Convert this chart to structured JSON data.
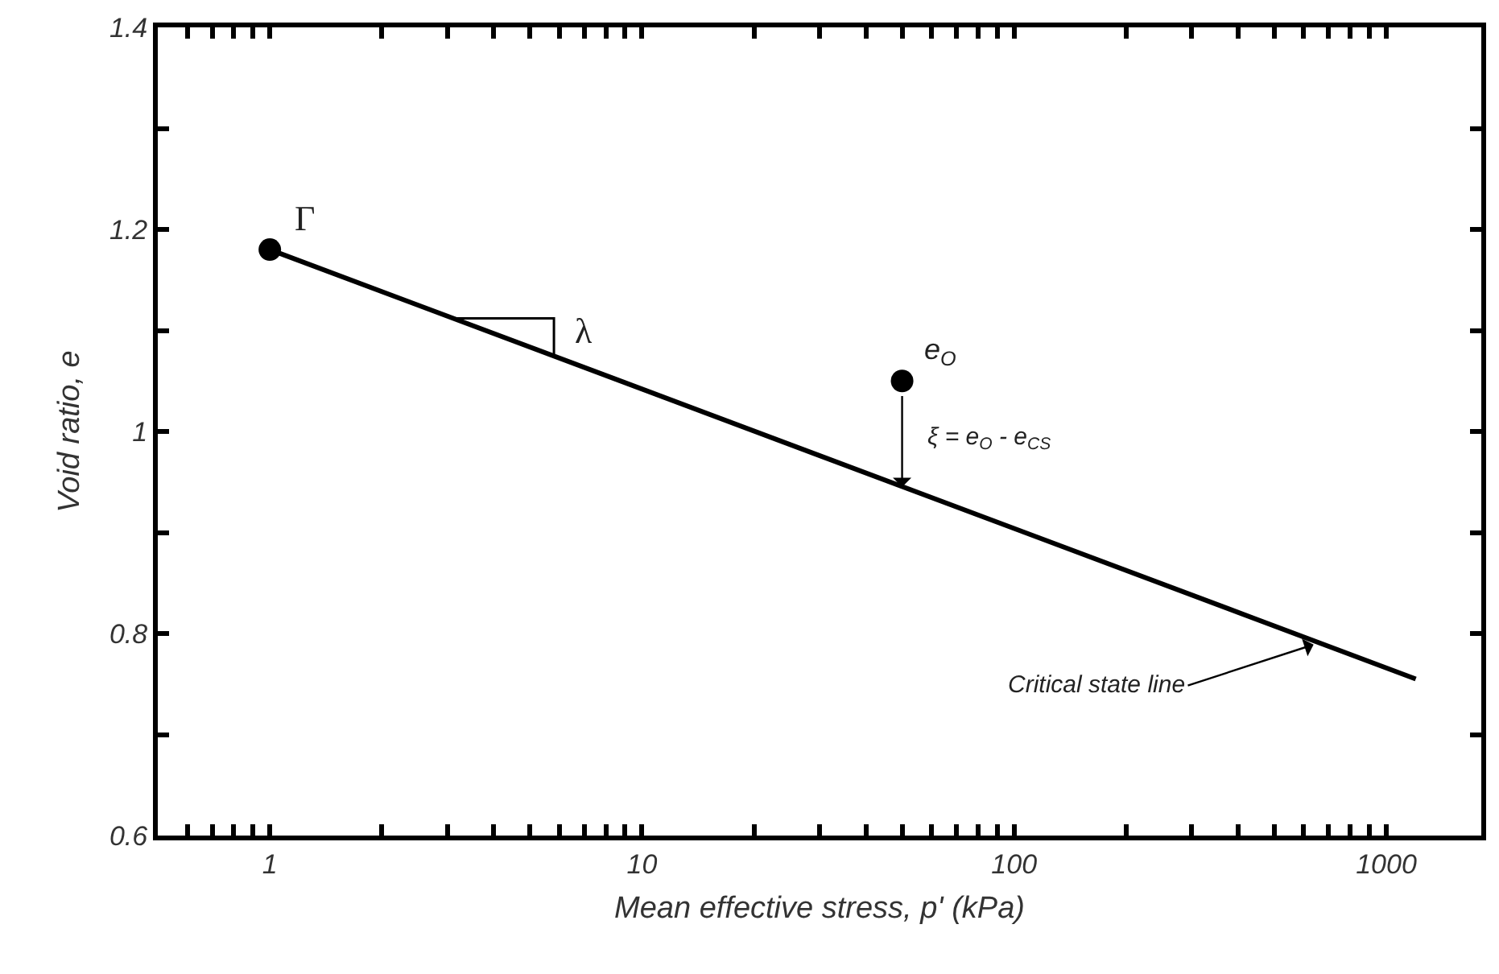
{
  "chart_data": {
    "type": "line",
    "xlabel": "Mean effective stress, p' (kPa)",
    "ylabel": "Void ratio, e",
    "log": "x",
    "xlim": [
      0.5,
      1800
    ],
    "ylim": [
      0.6,
      1.4
    ],
    "xticks": [
      {
        "value": 0.5,
        "label": null
      },
      {
        "value": 0.6,
        "label": null
      },
      {
        "value": 0.7,
        "label": null
      },
      {
        "value": 0.8,
        "label": null
      },
      {
        "value": 0.9,
        "label": null
      },
      1,
      {
        "value": 2,
        "label": null
      },
      {
        "value": 3,
        "label": null
      },
      {
        "value": 4,
        "label": null
      },
      {
        "value": 5,
        "label": null
      },
      {
        "value": 6,
        "label": null
      },
      {
        "value": 7,
        "label": null
      },
      {
        "value": 8,
        "label": null
      },
      {
        "value": 9,
        "label": null
      },
      10,
      {
        "value": 20,
        "label": null
      },
      {
        "value": 30,
        "label": null
      },
      {
        "value": 40,
        "label": null
      },
      {
        "value": 50,
        "label": null
      },
      {
        "value": 60,
        "label": null
      },
      {
        "value": 70,
        "label": null
      },
      {
        "value": 80,
        "label": null
      },
      {
        "value": 90,
        "label": null
      },
      100,
      {
        "value": 200,
        "label": null
      },
      {
        "value": 300,
        "label": null
      },
      {
        "value": 400,
        "label": null
      },
      {
        "value": 500,
        "label": null
      },
      {
        "value": 600,
        "label": null
      },
      {
        "value": 700,
        "label": null
      },
      {
        "value": 800,
        "label": null
      },
      {
        "value": 900,
        "label": null
      },
      1000
    ],
    "yticks": [
      0.6,
      {
        "value": 0.7,
        "label": null
      },
      0.8,
      {
        "value": 0.9,
        "label": null
      },
      1,
      {
        "value": 1.1,
        "label": null
      },
      1.2,
      {
        "value": 1.3,
        "label": null
      },
      1.4
    ],
    "series": [
      {
        "type": "line",
        "color": "#000000",
        "marker": "none",
        "x": [
          1,
          1200
        ],
        "values": [
          1.18,
          0.755
        ]
      },
      {
        "type": "line",
        "color": "#000000",
        "marker": "none",
        "x": [
          3.1,
          5.8,
          5.8
        ],
        "values": [
          1.112,
          1.112,
          1.074
        ]
      },
      {
        "type": "scatter",
        "color": "#000000",
        "marker": "circle",
        "x": [
          1,
          50
        ],
        "values": [
          1.18,
          1.05
        ]
      }
    ],
    "annotations": [
      {
        "text": "Γ",
        "x": 1,
        "y": 1.18
      },
      {
        "text": "λ",
        "x": 5.8,
        "y": 1.09
      },
      {
        "text": "e$_{O}$",
        "x": 50,
        "y": 1.05
      },
      {
        "text": "ξ = e$_{O}$ - e$_{CS}$",
        "x": 50,
        "y": 0.945
      },
      {
        "text": "Critical state line",
        "x": 650,
        "y": 0.79
      }
    ]
  }
}
